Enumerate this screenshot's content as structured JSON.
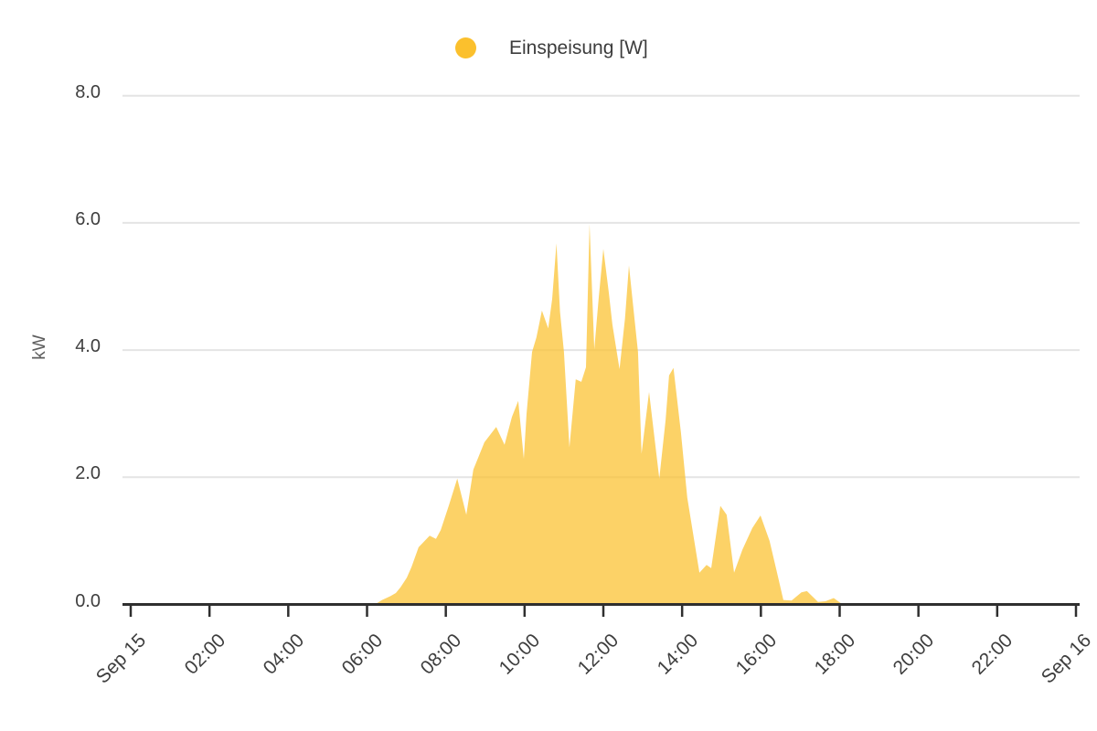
{
  "legend": {
    "series_label": "Einspeisung [W]"
  },
  "colors": {
    "series": "#FBC02D",
    "area_fill_opacity": 0.72,
    "gridline": "#E4E4E4",
    "axis": "#2F2F2F",
    "tick_text": "#3E3E3E",
    "unit_text": "#5E5E5E"
  },
  "y_axis": {
    "unit": "kW",
    "tick_values": [
      0,
      2,
      4,
      6,
      8
    ],
    "tick_labels": [
      "0.0",
      "2.0",
      "4.0",
      "6.0",
      "8.0"
    ]
  },
  "x_axis": {
    "tick_hours": [
      0,
      2,
      4,
      6,
      8,
      10,
      12,
      14,
      16,
      18,
      20,
      22,
      24
    ],
    "tick_labels": [
      "Sep 15",
      "02:00",
      "04:00",
      "06:00",
      "08:00",
      "10:00",
      "12:00",
      "14:00",
      "16:00",
      "18:00",
      "20:00",
      "22:00",
      "Sep 16"
    ]
  },
  "chart_data": {
    "type": "area",
    "title": "",
    "legend_label": "Einspeisung [W]",
    "legend_position": "top",
    "grid": true,
    "xlabel": "",
    "ylabel": "kW",
    "ylim": [
      0,
      8
    ],
    "y_ticks": [
      0,
      2,
      4,
      6,
      8
    ],
    "x_range_hours": [
      0,
      24
    ],
    "x_tick_hours": [
      0,
      2,
      4,
      6,
      8,
      10,
      12,
      14,
      16,
      18,
      20,
      22,
      24
    ],
    "x_tick_labels": [
      "Sep 15",
      "02:00",
      "04:00",
      "06:00",
      "08:00",
      "10:00",
      "12:00",
      "14:00",
      "16:00",
      "18:00",
      "20:00",
      "22:00",
      "Sep 16"
    ],
    "series": [
      {
        "name": "Einspeisung [W]",
        "unit": "kW",
        "x_hours": [
          6.2,
          6.38,
          6.59,
          6.73,
          6.85,
          7.01,
          7.13,
          7.31,
          7.59,
          7.75,
          7.87,
          8.08,
          8.29,
          8.52,
          8.7,
          8.98,
          9.28,
          9.49,
          9.68,
          9.84,
          9.98,
          10.05,
          10.19,
          10.3,
          10.44,
          10.6,
          10.7,
          10.81,
          10.9,
          11.0,
          11.14,
          11.3,
          11.44,
          11.56,
          11.65,
          11.77,
          11.88,
          12.0,
          12.14,
          12.23,
          12.41,
          12.55,
          12.65,
          12.79,
          12.88,
          12.97,
          13.16,
          13.42,
          13.58,
          13.67,
          13.78,
          13.97,
          14.13,
          14.44,
          14.62,
          14.74,
          14.97,
          15.13,
          15.32,
          15.53,
          15.78,
          15.99,
          16.22,
          16.41,
          16.57,
          16.78,
          17.03,
          17.17,
          17.45,
          17.64,
          17.85,
          18.03,
          18.26
        ],
        "values_kw": [
          0.0,
          0.07,
          0.13,
          0.18,
          0.27,
          0.42,
          0.59,
          0.9,
          1.08,
          1.03,
          1.17,
          1.56,
          1.98,
          1.41,
          2.12,
          2.55,
          2.79,
          2.51,
          2.95,
          3.2,
          2.29,
          3.0,
          3.97,
          4.2,
          4.62,
          4.34,
          4.8,
          5.68,
          4.6,
          3.97,
          2.47,
          3.54,
          3.5,
          3.73,
          5.98,
          4.01,
          4.8,
          5.59,
          4.9,
          4.4,
          3.7,
          4.5,
          5.33,
          4.5,
          3.97,
          2.37,
          3.34,
          1.98,
          2.9,
          3.6,
          3.72,
          2.7,
          1.68,
          0.5,
          0.62,
          0.57,
          1.55,
          1.41,
          0.5,
          0.86,
          1.2,
          1.4,
          1.0,
          0.5,
          0.07,
          0.06,
          0.19,
          0.21,
          0.04,
          0.05,
          0.1,
          0.02,
          0.0
        ]
      }
    ]
  }
}
